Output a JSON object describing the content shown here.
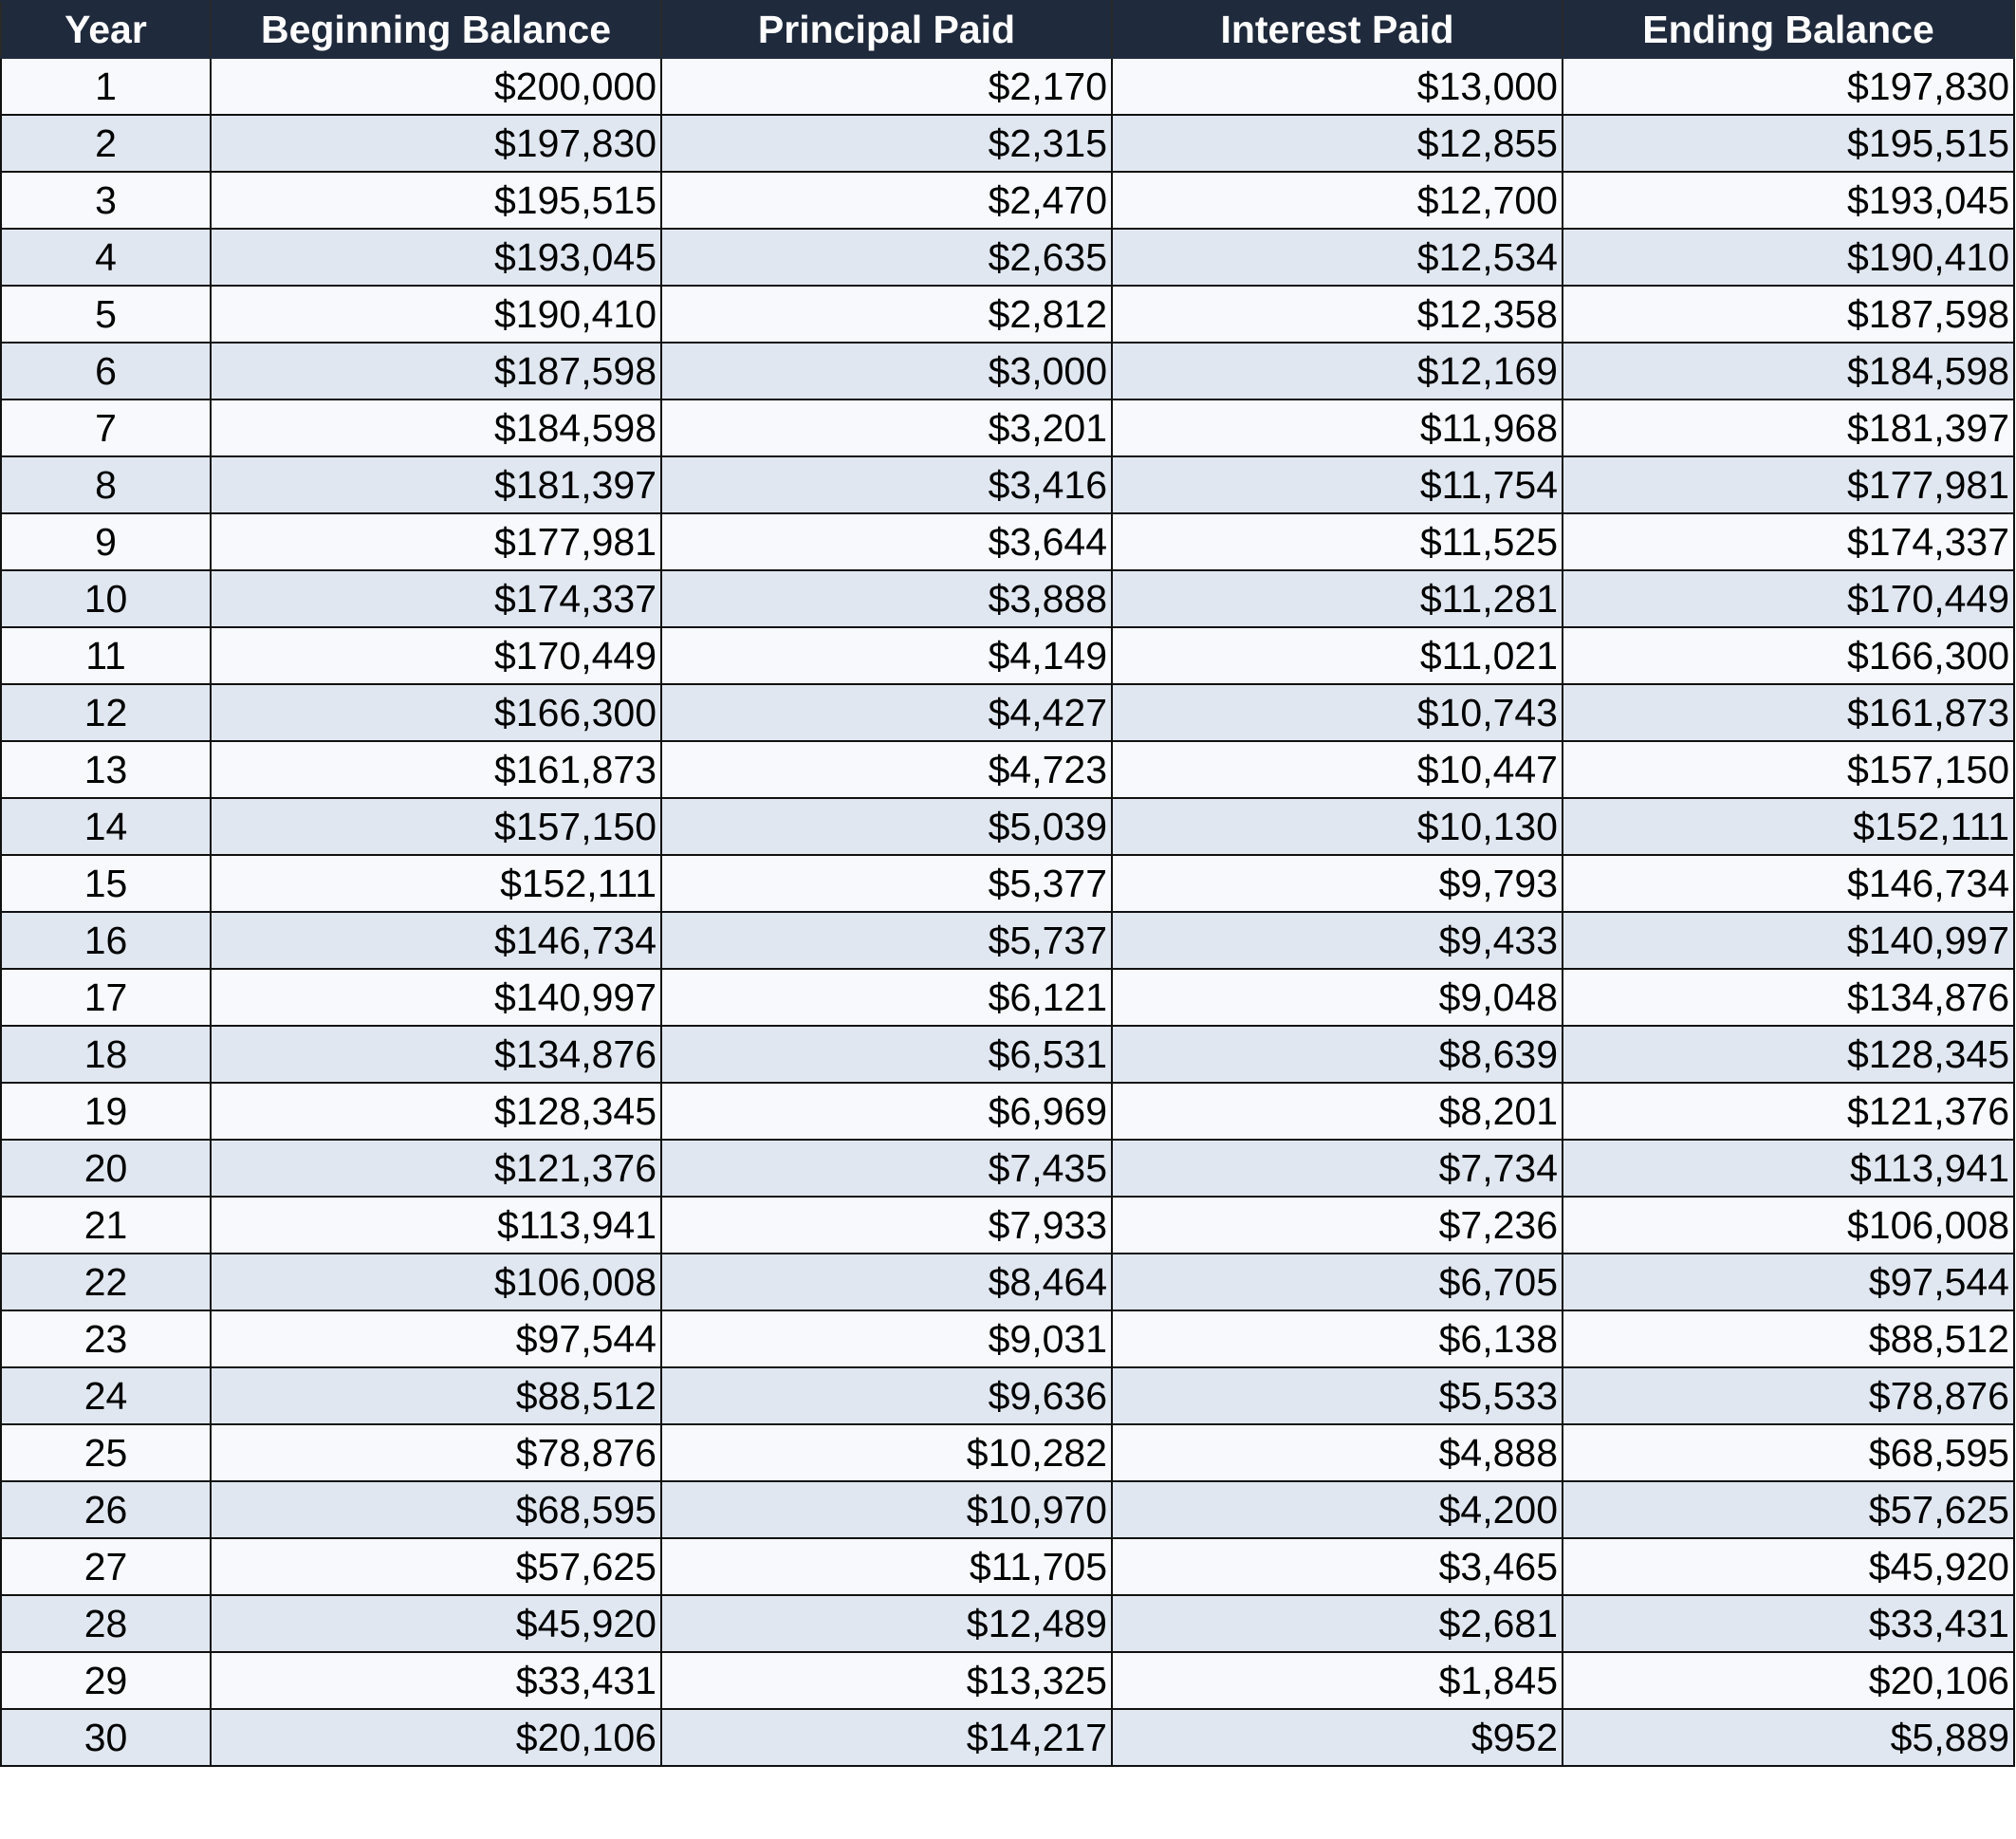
{
  "table": {
    "header": [
      "Year",
      "Beginning Balance",
      "Principal Paid",
      "Interest Paid",
      "Ending Balance"
    ],
    "rows": [
      [
        "1",
        "$200,000",
        "$2,170",
        "$13,000",
        "$197,830"
      ],
      [
        "2",
        "$197,830",
        "$2,315",
        "$12,855",
        "$195,515"
      ],
      [
        "3",
        "$195,515",
        "$2,470",
        "$12,700",
        "$193,045"
      ],
      [
        "4",
        "$193,045",
        "$2,635",
        "$12,534",
        "$190,410"
      ],
      [
        "5",
        "$190,410",
        "$2,812",
        "$12,358",
        "$187,598"
      ],
      [
        "6",
        "$187,598",
        "$3,000",
        "$12,169",
        "$184,598"
      ],
      [
        "7",
        "$184,598",
        "$3,201",
        "$11,968",
        "$181,397"
      ],
      [
        "8",
        "$181,397",
        "$3,416",
        "$11,754",
        "$177,981"
      ],
      [
        "9",
        "$177,981",
        "$3,644",
        "$11,525",
        "$174,337"
      ],
      [
        "10",
        "$174,337",
        "$3,888",
        "$11,281",
        "$170,449"
      ],
      [
        "11",
        "$170,449",
        "$4,149",
        "$11,021",
        "$166,300"
      ],
      [
        "12",
        "$166,300",
        "$4,427",
        "$10,743",
        "$161,873"
      ],
      [
        "13",
        "$161,873",
        "$4,723",
        "$10,447",
        "$157,150"
      ],
      [
        "14",
        "$157,150",
        "$5,039",
        "$10,130",
        "$152,111"
      ],
      [
        "15",
        "$152,111",
        "$5,377",
        "$9,793",
        "$146,734"
      ],
      [
        "16",
        "$146,734",
        "$5,737",
        "$9,433",
        "$140,997"
      ],
      [
        "17",
        "$140,997",
        "$6,121",
        "$9,048",
        "$134,876"
      ],
      [
        "18",
        "$134,876",
        "$6,531",
        "$8,639",
        "$128,345"
      ],
      [
        "19",
        "$128,345",
        "$6,969",
        "$8,201",
        "$121,376"
      ],
      [
        "20",
        "$121,376",
        "$7,435",
        "$7,734",
        "$113,941"
      ],
      [
        "21",
        "$113,941",
        "$7,933",
        "$7,236",
        "$106,008"
      ],
      [
        "22",
        "$106,008",
        "$8,464",
        "$6,705",
        "$97,544"
      ],
      [
        "23",
        "$97,544",
        "$9,031",
        "$6,138",
        "$88,512"
      ],
      [
        "24",
        "$88,512",
        "$9,636",
        "$5,533",
        "$78,876"
      ],
      [
        "25",
        "$78,876",
        "$10,282",
        "$4,888",
        "$68,595"
      ],
      [
        "26",
        "$68,595",
        "$10,970",
        "$4,200",
        "$57,625"
      ],
      [
        "27",
        "$57,625",
        "$11,705",
        "$3,465",
        "$45,920"
      ],
      [
        "28",
        "$45,920",
        "$12,489",
        "$2,681",
        "$33,431"
      ],
      [
        "29",
        "$33,431",
        "$13,325",
        "$1,845",
        "$20,106"
      ],
      [
        "30",
        "$20,106",
        "$14,217",
        "$952",
        "$5,889"
      ]
    ]
  }
}
